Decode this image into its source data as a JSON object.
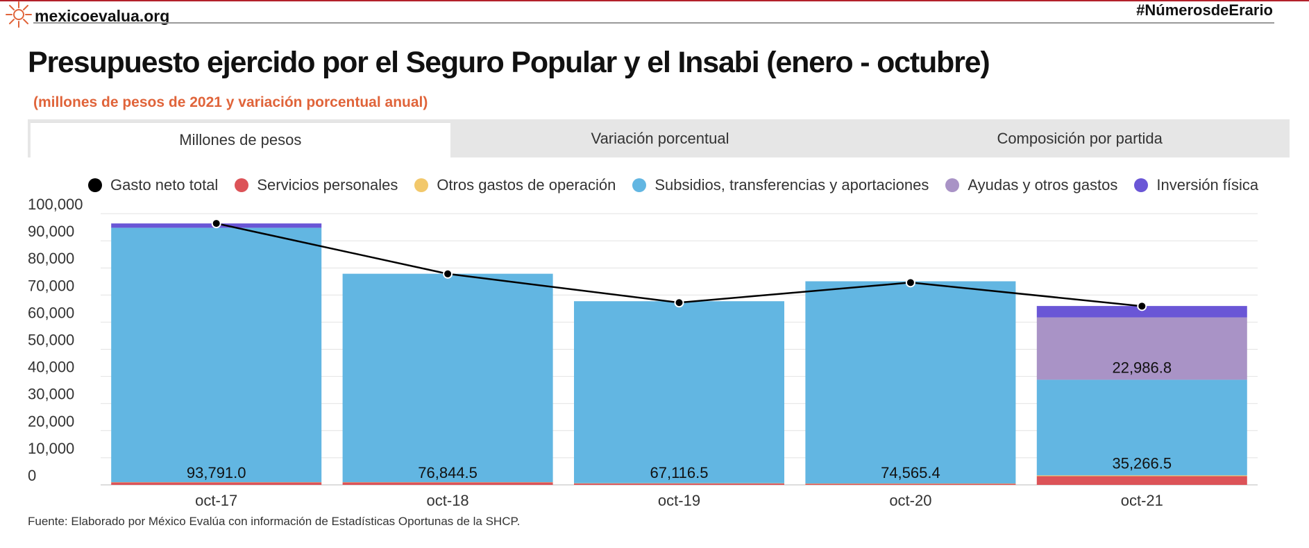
{
  "header": {
    "brand": "mexicoevalua.org",
    "hashtag": "#NúmerosdeErario",
    "logo_icon": "starburst-logo-icon",
    "accent_color": "#e0643a"
  },
  "tabs": [
    {
      "label": "Millones de pesos",
      "active": true
    },
    {
      "label": "Variación porcentual",
      "active": false
    },
    {
      "label": "Composición por partida",
      "active": false
    }
  ],
  "chart_data": {
    "type": "bar",
    "stacked": true,
    "title": "Presupuesto ejercido por el Seguro Popular y el Insabi (enero - octubre)",
    "subtitle": "(millones de pesos de 2021 y variación porcentual anual)",
    "categories": [
      "oct-17",
      "oct-18",
      "oct-19",
      "oct-20",
      "oct-21"
    ],
    "ylim": [
      0,
      100000
    ],
    "yticks": [
      0,
      10000,
      20000,
      30000,
      40000,
      50000,
      60000,
      70000,
      80000,
      90000,
      100000
    ],
    "ytick_labels": [
      "0",
      "10,000",
      "20,000",
      "30,000",
      "40,000",
      "50,000",
      "60,000",
      "70,000",
      "80,000",
      "90,000",
      "100,000"
    ],
    "grid": true,
    "legend_position": "top",
    "series": [
      {
        "name": "Servicios personales",
        "color": "#dc5358",
        "values": [
          900,
          900,
          500,
          400,
          3200
        ]
      },
      {
        "name": "Otros gastos de operación",
        "color": "#f2c86b",
        "values": [
          100,
          100,
          100,
          100,
          300
        ]
      },
      {
        "name": "Subsidios, transferencias y aportaciones",
        "color": "#62b6e2",
        "values": [
          93791.0,
          76844.5,
          67116.5,
          74565.4,
          35266.5
        ],
        "labels": [
          "93,791.0",
          "76,844.5",
          "67,116.5",
          "74,565.4",
          "35,266.5"
        ]
      },
      {
        "name": "Ayudas y otros gastos",
        "color": "#a993c6",
        "values": [
          0,
          0,
          0,
          0,
          22986.8
        ],
        "labels": [
          "",
          "",
          "",
          "",
          "22,986.8"
        ]
      },
      {
        "name": "Inversión física",
        "color": "#6a56d6",
        "values": [
          1600,
          0,
          0,
          0,
          4200
        ]
      }
    ],
    "line": {
      "name": "Gasto neto total",
      "color": "#000000",
      "values": [
        96400,
        77800,
        67200,
        74600,
        65900
      ]
    },
    "legend": [
      {
        "name": "Gasto neto total",
        "color": "#000000"
      },
      {
        "name": "Servicios personales",
        "color": "#dc5358"
      },
      {
        "name": "Otros gastos de operación",
        "color": "#f2c86b"
      },
      {
        "name": "Subsidios, transferencias y aportaciones",
        "color": "#62b6e2"
      },
      {
        "name": "Ayudas y otros gastos",
        "color": "#a993c6"
      },
      {
        "name": "Inversión física",
        "color": "#6a56d6"
      }
    ]
  },
  "footer": {
    "source": "Fuente: Elaborado por México Evalúa con información de Estadísticas Oportunas de la SHCP."
  }
}
